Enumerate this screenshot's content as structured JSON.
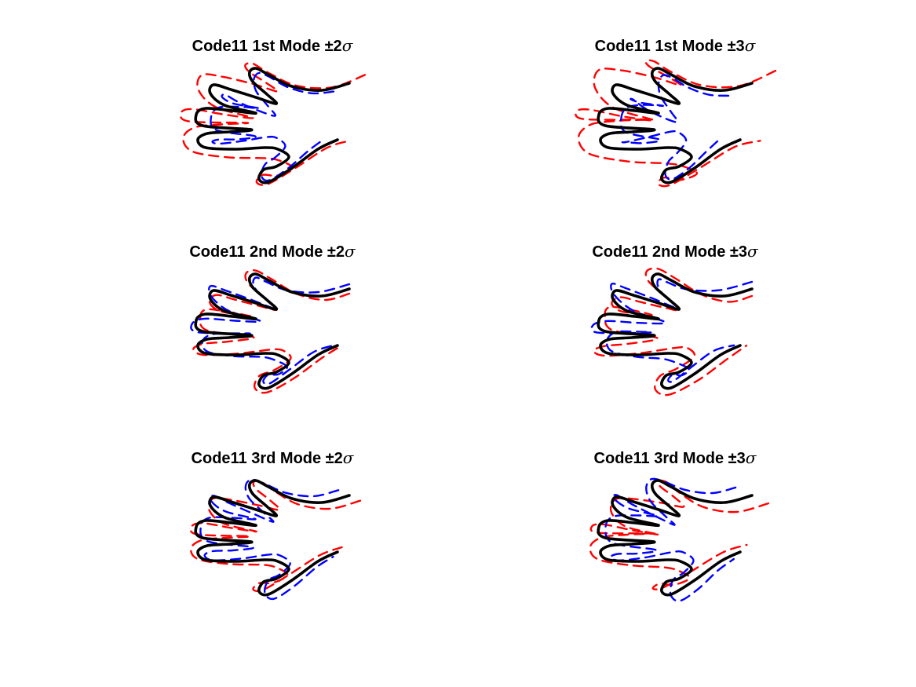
{
  "chart_data": [
    {
      "type": "line",
      "title_main": "Code11 1st Mode ±2",
      "title_sym": "σ",
      "deform": {
        "mode": 1,
        "k": 2
      },
      "series": [
        {
          "role": "mean",
          "color": "#000000"
        },
        {
          "role": "plus",
          "color": "#ff0000"
        },
        {
          "role": "minus",
          "color": "#0000ff"
        }
      ]
    },
    {
      "type": "line",
      "title_main": "Code11 1st Mode ±3",
      "title_sym": "σ",
      "deform": {
        "mode": 1,
        "k": 3
      },
      "series": [
        {
          "role": "mean",
          "color": "#000000"
        },
        {
          "role": "plus",
          "color": "#ff0000"
        },
        {
          "role": "minus",
          "color": "#0000ff"
        }
      ]
    },
    {
      "type": "line",
      "title_main": "Code11 2nd Mode ±2",
      "title_sym": "σ",
      "deform": {
        "mode": 2,
        "k": 2
      },
      "series": [
        {
          "role": "mean",
          "color": "#000000"
        },
        {
          "role": "plus",
          "color": "#ff0000"
        },
        {
          "role": "minus",
          "color": "#0000ff"
        }
      ]
    },
    {
      "type": "line",
      "title_main": "Code11 2nd Mode ±3",
      "title_sym": "σ",
      "deform": {
        "mode": 2,
        "k": 3
      },
      "series": [
        {
          "role": "mean",
          "color": "#000000"
        },
        {
          "role": "plus",
          "color": "#ff0000"
        },
        {
          "role": "minus",
          "color": "#0000ff"
        }
      ]
    },
    {
      "type": "line",
      "title_main": "Code11 3rd Mode ±2",
      "title_sym": "σ",
      "deform": {
        "mode": 3,
        "k": 2
      },
      "series": [
        {
          "role": "mean",
          "color": "#000000"
        },
        {
          "role": "plus",
          "color": "#ff0000"
        },
        {
          "role": "minus",
          "color": "#0000ff"
        }
      ]
    },
    {
      "type": "line",
      "title_main": "Code11 3rd Mode ±3",
      "title_sym": "σ",
      "deform": {
        "mode": 3,
        "k": 3
      },
      "series": [
        {
          "role": "mean",
          "color": "#000000"
        },
        {
          "role": "plus",
          "color": "#ff0000"
        },
        {
          "role": "minus",
          "color": "#0000ff"
        }
      ]
    }
  ]
}
